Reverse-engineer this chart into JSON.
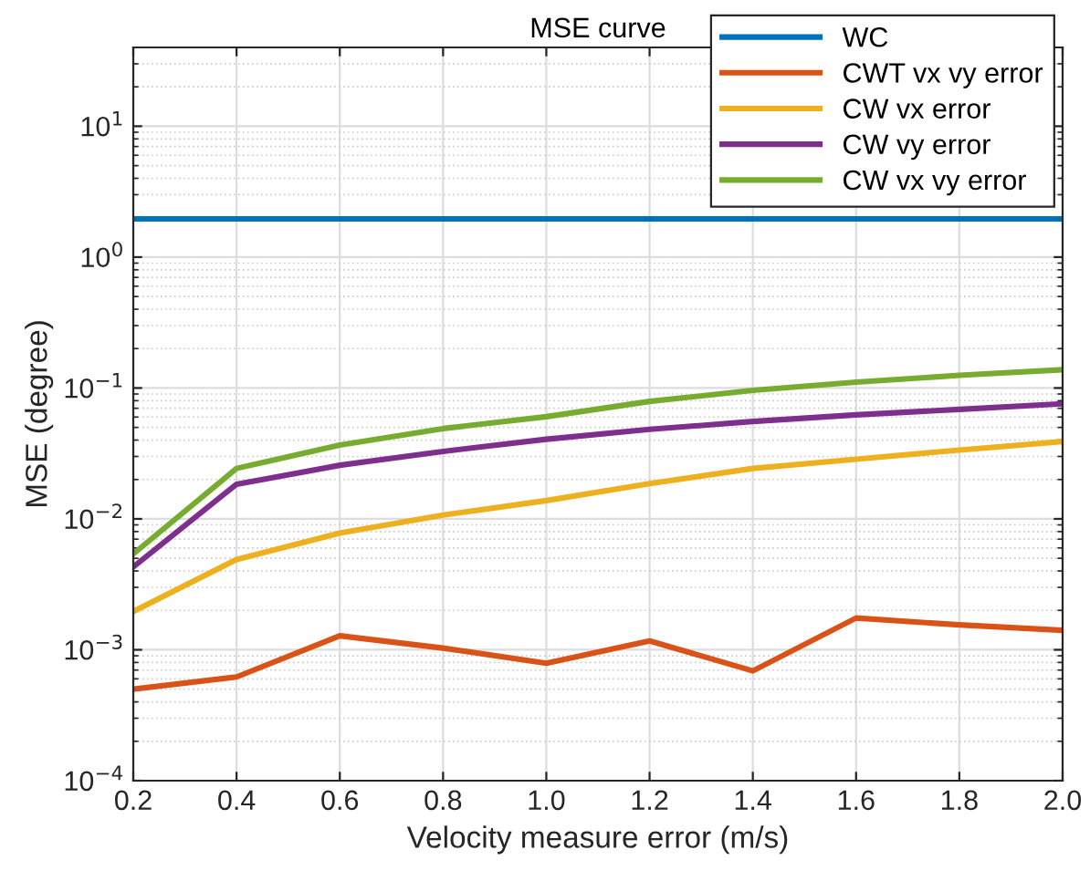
{
  "chart_data": {
    "type": "line",
    "title": "MSE curve",
    "xlabel": "Velocity measure error (m/s)",
    "ylabel": "MSE (degree)",
    "log": "y",
    "grid": true,
    "legend": "top right",
    "x": [
      0.2,
      0.4,
      0.6,
      0.8,
      1.0,
      1.2,
      1.4,
      1.6,
      1.8,
      2.0
    ],
    "xlim": [
      0.2,
      2.0
    ],
    "xticks": [
      {
        "value": 0.2,
        "label": "0.2"
      },
      {
        "value": 0.4,
        "label": "0.4"
      },
      {
        "value": 0.6,
        "label": "0.6"
      },
      {
        "value": 0.8,
        "label": "0.8"
      },
      {
        "value": 1.0,
        "label": "1.0"
      },
      {
        "value": 1.2,
        "label": "1.2"
      },
      {
        "value": 1.4,
        "label": "1.4"
      },
      {
        "value": 1.6,
        "label": "1.6"
      },
      {
        "value": 1.8,
        "label": "1.8"
      },
      {
        "value": 2.0,
        "label": "2.0"
      }
    ],
    "ylim": [
      0.0001,
      40
    ],
    "yticks": [
      {
        "value": 0.0001,
        "label": "10$^{−4}$"
      },
      {
        "value": 0.001,
        "label": "10$^{−3}$"
      },
      {
        "value": 0.01,
        "label": "10$^{−2}$"
      },
      {
        "value": 0.1,
        "label": "10$^{−1}$"
      },
      {
        "value": 1,
        "label": "10$^{0}$"
      },
      {
        "value": 10,
        "label": "10$^{1}$"
      }
    ],
    "series": [
      {
        "name": "WC",
        "color": "#0072bd",
        "values": [
          1.96,
          1.96,
          1.96,
          1.96,
          1.96,
          1.96,
          1.96,
          1.96,
          1.96,
          1.96
        ]
      },
      {
        "name": "CWT vx vy error",
        "color": "#d95319",
        "values": [
          0.0005,
          0.00062,
          0.00128,
          0.00103,
          0.00079,
          0.00117,
          0.00069,
          0.00175,
          0.00155,
          0.00141
        ]
      },
      {
        "name": "CW vx error",
        "color": "#edb120",
        "values": [
          0.00196,
          0.0049,
          0.0078,
          0.0107,
          0.0138,
          0.0186,
          0.0243,
          0.0286,
          0.0336,
          0.039
        ]
      },
      {
        "name": "CW vy error",
        "color": "#7e2f8e",
        "values": [
          0.0043,
          0.0184,
          0.0257,
          0.0328,
          0.0406,
          0.0483,
          0.0555,
          0.0624,
          0.0687,
          0.0757
        ]
      },
      {
        "name": "CW vx vy error",
        "color": "#77ac30",
        "values": [
          0.0054,
          0.0243,
          0.0366,
          0.049,
          0.0604,
          0.079,
          0.096,
          0.111,
          0.125,
          0.138
        ]
      }
    ]
  }
}
